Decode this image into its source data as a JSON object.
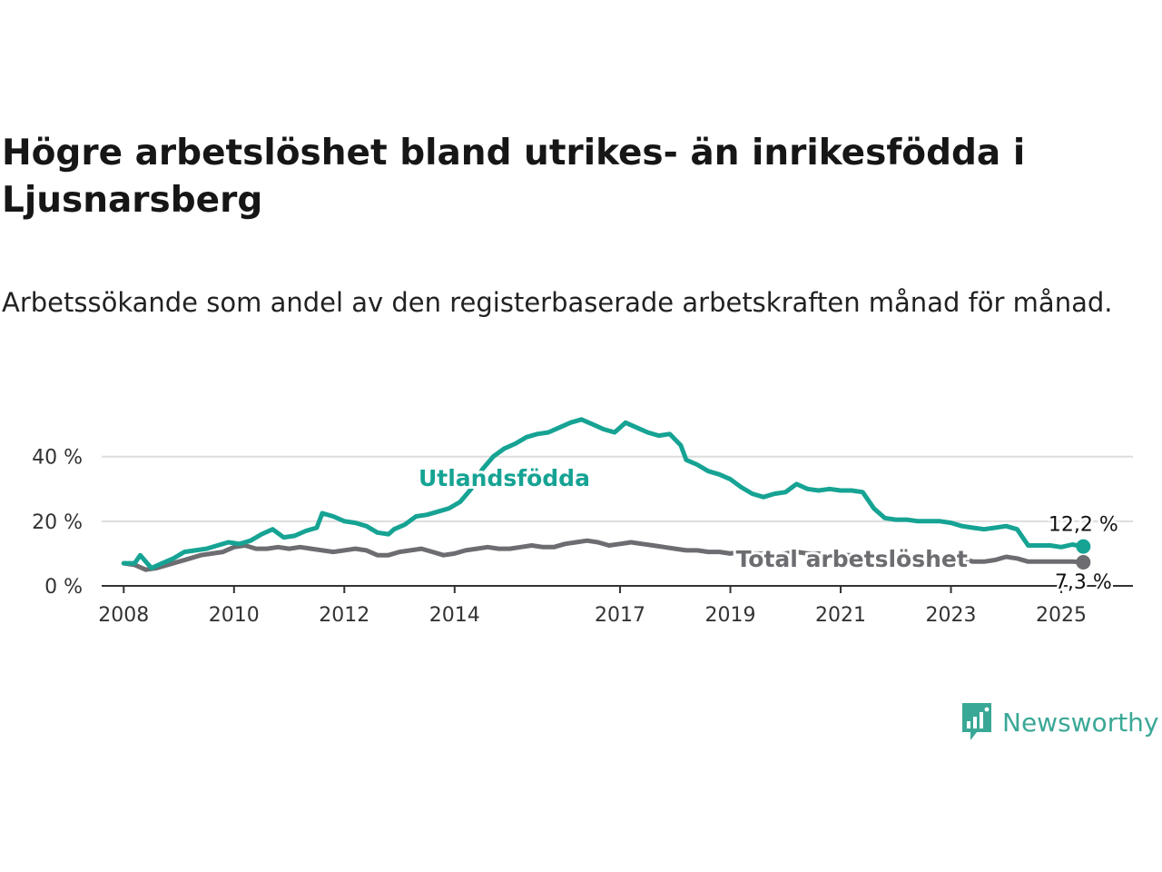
{
  "header": {
    "title": "Högre arbetslöshet bland utrikes- än inrikesfödda i Ljusnarsberg",
    "subtitle": "Arbetssökande som andel av den registerbaserade arbetskraften månad för månad."
  },
  "brand": {
    "name": "Newsworthy",
    "icon": "newsworthy-logo-icon",
    "color": "#3aa896"
  },
  "chart_data": {
    "type": "line",
    "x_unit": "year",
    "xlim": [
      2007.6,
      2026.3
    ],
    "ylim": [
      0,
      52
    ],
    "y_ticks": [
      {
        "value": 0,
        "label": "0 %"
      },
      {
        "value": 20,
        "label": "20 %"
      },
      {
        "value": 40,
        "label": "40 %"
      }
    ],
    "x_ticks": [
      {
        "value": 2008,
        "label": "2008"
      },
      {
        "value": 2010,
        "label": "2010"
      },
      {
        "value": 2012,
        "label": "2012"
      },
      {
        "value": 2014,
        "label": "2014"
      },
      {
        "value": 2017,
        "label": "2017"
      },
      {
        "value": 2019,
        "label": "2019"
      },
      {
        "value": 2021,
        "label": "2021"
      },
      {
        "value": 2023,
        "label": "2023"
      },
      {
        "value": 2025,
        "label": "2025"
      }
    ],
    "grid": true,
    "legend": "inline",
    "series": [
      {
        "name": "Utlandsfödda",
        "color": "#16a394",
        "end_label": "12,2 %",
        "points": [
          [
            2008.0,
            7.0
          ],
          [
            2008.2,
            7.0
          ],
          [
            2008.3,
            9.5
          ],
          [
            2008.5,
            5.5
          ],
          [
            2008.7,
            7.0
          ],
          [
            2008.9,
            8.5
          ],
          [
            2009.1,
            10.5
          ],
          [
            2009.3,
            11.0
          ],
          [
            2009.5,
            11.5
          ],
          [
            2009.7,
            12.5
          ],
          [
            2009.9,
            13.5
          ],
          [
            2010.1,
            13.0
          ],
          [
            2010.3,
            14.0
          ],
          [
            2010.5,
            16.0
          ],
          [
            2010.7,
            17.5
          ],
          [
            2010.9,
            15.0
          ],
          [
            2011.1,
            15.5
          ],
          [
            2011.3,
            17.0
          ],
          [
            2011.5,
            18.0
          ],
          [
            2011.6,
            22.5
          ],
          [
            2011.8,
            21.5
          ],
          [
            2012.0,
            20.0
          ],
          [
            2012.2,
            19.5
          ],
          [
            2012.4,
            18.5
          ],
          [
            2012.6,
            16.5
          ],
          [
            2012.8,
            16.0
          ],
          [
            2012.9,
            17.5
          ],
          [
            2013.1,
            19.0
          ],
          [
            2013.3,
            21.5
          ],
          [
            2013.5,
            22.0
          ],
          [
            2013.7,
            23.0
          ],
          [
            2013.9,
            24.0
          ],
          [
            2014.1,
            26.0
          ],
          [
            2014.3,
            30.0
          ],
          [
            2014.5,
            36.0
          ],
          [
            2014.7,
            40.0
          ],
          [
            2014.9,
            42.5
          ],
          [
            2015.1,
            44.0
          ],
          [
            2015.3,
            46.0
          ],
          [
            2015.5,
            47.0
          ],
          [
            2015.7,
            47.5
          ],
          [
            2015.9,
            49.0
          ],
          [
            2016.1,
            50.5
          ],
          [
            2016.3,
            51.5
          ],
          [
            2016.5,
            50.0
          ],
          [
            2016.7,
            48.5
          ],
          [
            2016.9,
            47.5
          ],
          [
            2017.0,
            49.0
          ],
          [
            2017.1,
            50.5
          ],
          [
            2017.3,
            49.0
          ],
          [
            2017.5,
            47.5
          ],
          [
            2017.7,
            46.5
          ],
          [
            2017.9,
            47.0
          ],
          [
            2018.1,
            43.5
          ],
          [
            2018.2,
            39.0
          ],
          [
            2018.4,
            37.5
          ],
          [
            2018.6,
            35.5
          ],
          [
            2018.8,
            34.5
          ],
          [
            2019.0,
            33.0
          ],
          [
            2019.2,
            30.5
          ],
          [
            2019.4,
            28.5
          ],
          [
            2019.6,
            27.5
          ],
          [
            2019.8,
            28.5
          ],
          [
            2020.0,
            29.0
          ],
          [
            2020.2,
            31.5
          ],
          [
            2020.4,
            30.0
          ],
          [
            2020.6,
            29.5
          ],
          [
            2020.8,
            30.0
          ],
          [
            2021.0,
            29.5
          ],
          [
            2021.2,
            29.5
          ],
          [
            2021.4,
            29.0
          ],
          [
            2021.6,
            24.0
          ],
          [
            2021.8,
            21.0
          ],
          [
            2022.0,
            20.5
          ],
          [
            2022.2,
            20.5
          ],
          [
            2022.4,
            20.0
          ],
          [
            2022.6,
            20.0
          ],
          [
            2022.8,
            20.0
          ],
          [
            2023.0,
            19.5
          ],
          [
            2023.2,
            18.5
          ],
          [
            2023.4,
            18.0
          ],
          [
            2023.6,
            17.5
          ],
          [
            2023.8,
            18.0
          ],
          [
            2024.0,
            18.5
          ],
          [
            2024.2,
            17.5
          ],
          [
            2024.4,
            12.5
          ],
          [
            2024.6,
            12.5
          ],
          [
            2024.8,
            12.5
          ],
          [
            2025.0,
            12.0
          ],
          [
            2025.2,
            12.8
          ],
          [
            2025.4,
            12.2
          ]
        ]
      },
      {
        "name": "Total arbetslöshet",
        "color": "#6d6c70",
        "end_label": "7,3 %",
        "points": [
          [
            2008.0,
            7.0
          ],
          [
            2008.2,
            6.5
          ],
          [
            2008.4,
            5.0
          ],
          [
            2008.6,
            5.5
          ],
          [
            2008.8,
            6.5
          ],
          [
            2009.0,
            7.5
          ],
          [
            2009.2,
            8.5
          ],
          [
            2009.4,
            9.5
          ],
          [
            2009.6,
            10.0
          ],
          [
            2009.8,
            10.5
          ],
          [
            2010.0,
            12.0
          ],
          [
            2010.2,
            12.5
          ],
          [
            2010.4,
            11.5
          ],
          [
            2010.6,
            11.5
          ],
          [
            2010.8,
            12.0
          ],
          [
            2011.0,
            11.5
          ],
          [
            2011.2,
            12.0
          ],
          [
            2011.4,
            11.5
          ],
          [
            2011.6,
            11.0
          ],
          [
            2011.8,
            10.5
          ],
          [
            2012.0,
            11.0
          ],
          [
            2012.2,
            11.5
          ],
          [
            2012.4,
            11.0
          ],
          [
            2012.6,
            9.5
          ],
          [
            2012.8,
            9.5
          ],
          [
            2013.0,
            10.5
          ],
          [
            2013.2,
            11.0
          ],
          [
            2013.4,
            11.5
          ],
          [
            2013.6,
            10.5
          ],
          [
            2013.8,
            9.5
          ],
          [
            2014.0,
            10.0
          ],
          [
            2014.2,
            11.0
          ],
          [
            2014.4,
            11.5
          ],
          [
            2014.6,
            12.0
          ],
          [
            2014.8,
            11.5
          ],
          [
            2015.0,
            11.5
          ],
          [
            2015.2,
            12.0
          ],
          [
            2015.4,
            12.5
          ],
          [
            2015.6,
            12.0
          ],
          [
            2015.8,
            12.0
          ],
          [
            2016.0,
            13.0
          ],
          [
            2016.2,
            13.5
          ],
          [
            2016.4,
            14.0
          ],
          [
            2016.6,
            13.5
          ],
          [
            2016.8,
            12.5
          ],
          [
            2017.0,
            13.0
          ],
          [
            2017.2,
            13.5
          ],
          [
            2017.4,
            13.0
          ],
          [
            2017.6,
            12.5
          ],
          [
            2017.8,
            12.0
          ],
          [
            2018.0,
            11.5
          ],
          [
            2018.2,
            11.0
          ],
          [
            2018.4,
            11.0
          ],
          [
            2018.6,
            10.5
          ],
          [
            2018.8,
            10.5
          ],
          [
            2019.0,
            10.0
          ],
          [
            2019.2,
            10.5
          ],
          [
            2019.4,
            10.0
          ],
          [
            2019.6,
            10.0
          ],
          [
            2019.8,
            9.5
          ],
          [
            2020.0,
            10.0
          ],
          [
            2020.2,
            10.5
          ],
          [
            2020.4,
            10.0
          ],
          [
            2020.6,
            10.0
          ],
          [
            2020.8,
            9.5
          ],
          [
            2021.0,
            9.5
          ],
          [
            2021.2,
            9.5
          ],
          [
            2021.4,
            9.0
          ],
          [
            2021.6,
            9.0
          ],
          [
            2021.8,
            9.0
          ],
          [
            2022.0,
            9.0
          ],
          [
            2022.2,
            8.0
          ],
          [
            2022.4,
            8.0
          ],
          [
            2022.6,
            8.5
          ],
          [
            2022.8,
            8.5
          ],
          [
            2023.0,
            8.5
          ],
          [
            2023.2,
            8.5
          ],
          [
            2023.4,
            7.5
          ],
          [
            2023.6,
            7.5
          ],
          [
            2023.8,
            8.0
          ],
          [
            2024.0,
            9.0
          ],
          [
            2024.2,
            8.5
          ],
          [
            2024.4,
            7.5
          ],
          [
            2024.6,
            7.5
          ],
          [
            2024.8,
            7.5
          ],
          [
            2025.0,
            7.5
          ],
          [
            2025.2,
            7.5
          ],
          [
            2025.4,
            7.3
          ]
        ]
      }
    ]
  }
}
